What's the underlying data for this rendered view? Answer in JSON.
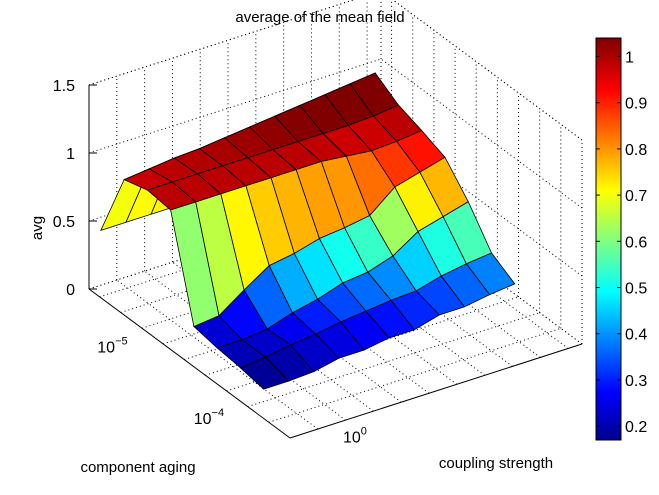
{
  "chart_data": {
    "type": "surface",
    "title": "average of the mean field",
    "zlabel": "avg",
    "xlabel": "coupling strength",
    "ylabel": "component aging",
    "z_ticks": [
      "0",
      "0.5",
      "1",
      "1.5"
    ],
    "z_tick_values": [
      0,
      0.5,
      1,
      1.5
    ],
    "zlim": [
      0,
      1.5
    ],
    "x_ticks": [
      {
        "base": "10",
        "exp": "0"
      }
    ],
    "y_ticks": [
      {
        "base": "10",
        "exp": "−5"
      },
      {
        "base": "10",
        "exp": "−4"
      }
    ],
    "x_scale": "log",
    "y_scale": "log",
    "grid": true,
    "colormap": "jet",
    "colorbar": {
      "ticks": [
        "1",
        "0.9",
        "0.8",
        "0.7",
        "0.6",
        "0.5",
        "0.4",
        "0.3",
        "0.2"
      ],
      "tick_values": [
        1,
        0.9,
        0.8,
        0.7,
        0.6,
        0.5,
        0.4,
        0.3,
        0.2
      ],
      "clim": [
        0.17,
        1.04
      ],
      "position": "right"
    },
    "surface": {
      "rows": 8,
      "cols": 11,
      "z": [
        [
          0.45,
          0.45,
          0.45,
          0.45,
          0.45,
          0.45,
          0.45,
          0.45,
          0.45,
          0.45,
          0.45
        ],
        [
          0.95,
          0.97,
          0.99,
          1.0,
          1.02,
          1.04,
          1.06,
          1.08,
          1.1,
          1.12,
          1.14
        ],
        [
          1.0,
          1.0,
          1.0,
          1.0,
          1.0,
          1.0,
          1.0,
          1.0,
          1.0,
          1.01,
          1.03
        ],
        [
          0.98,
          0.98,
          0.98,
          0.98,
          0.98,
          0.98,
          0.98,
          0.96,
          0.94,
          0.95,
          0.97
        ],
        [
          0.25,
          0.27,
          0.4,
          0.52,
          0.55,
          0.6,
          0.62,
          0.65,
          0.8,
          0.85,
          0.9
        ],
        [
          0.22,
          0.22,
          0.24,
          0.3,
          0.34,
          0.4,
          0.42,
          0.48,
          0.6,
          0.65,
          0.7
        ],
        [
          0.2,
          0.22,
          0.25,
          0.27,
          0.3,
          0.32,
          0.34,
          0.35,
          0.4,
          0.43,
          0.45
        ],
        [
          0.17,
          0.17,
          0.18,
          0.22,
          0.22,
          0.25,
          0.25,
          0.3,
          0.3,
          0.33,
          0.35
        ]
      ]
    }
  }
}
